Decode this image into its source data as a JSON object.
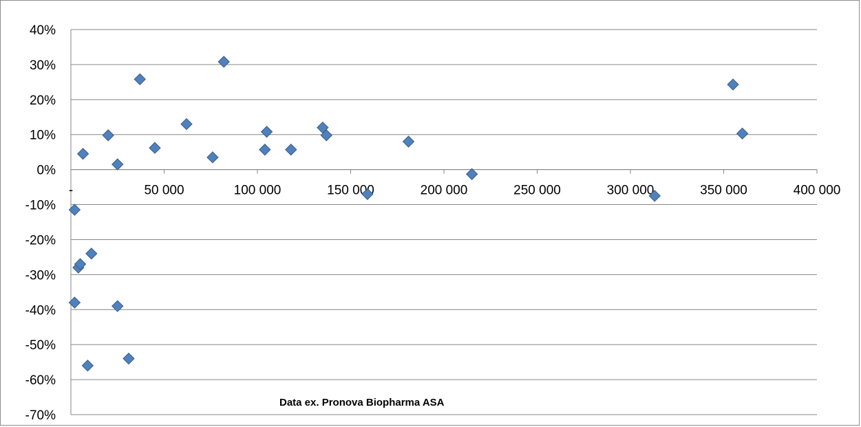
{
  "chart_data": {
    "type": "scatter",
    "title": "",
    "xlabel": "",
    "ylabel": "",
    "xlim": [
      0,
      400000
    ],
    "ylim": [
      -0.7,
      0.4
    ],
    "x_ticks": [
      {
        "value": 0,
        "label": "-"
      },
      {
        "value": 50000,
        "label": "50 000"
      },
      {
        "value": 100000,
        "label": "100 000"
      },
      {
        "value": 150000,
        "label": "150 000"
      },
      {
        "value": 200000,
        "label": "200 000"
      },
      {
        "value": 250000,
        "label": "250 000"
      },
      {
        "value": 300000,
        "label": "300 000"
      },
      {
        "value": 350000,
        "label": "350 000"
      },
      {
        "value": 400000,
        "label": "400 000"
      }
    ],
    "y_ticks": [
      {
        "value": 0.4,
        "label": "40%"
      },
      {
        "value": 0.3,
        "label": "30%"
      },
      {
        "value": 0.2,
        "label": "20%"
      },
      {
        "value": 0.1,
        "label": "10%"
      },
      {
        "value": 0.0,
        "label": "0%"
      },
      {
        "value": -0.1,
        "label": "-10%"
      },
      {
        "value": -0.2,
        "label": "-20%"
      },
      {
        "value": -0.3,
        "label": "-30%"
      },
      {
        "value": -0.4,
        "label": "-40%"
      },
      {
        "value": -0.5,
        "label": "-50%"
      },
      {
        "value": -0.6,
        "label": "-60%"
      },
      {
        "value": -0.7,
        "label": "-70%"
      }
    ],
    "grid": true,
    "legend": "none",
    "annotation": "Data ex. Pronova Biopharma ASA",
    "marker_color": "#4f81bd",
    "marker_edge_color": "#385d8a",
    "gridline_color": "#868686",
    "series": [
      {
        "points": [
          {
            "x": 2000,
            "y": -0.115
          },
          {
            "x": 2000,
            "y": -0.38
          },
          {
            "x": 4000,
            "y": -0.28
          },
          {
            "x": 5000,
            "y": -0.27
          },
          {
            "x": 6500,
            "y": 0.045
          },
          {
            "x": 9000,
            "y": -0.56
          },
          {
            "x": 11000,
            "y": -0.24
          },
          {
            "x": 20000,
            "y": 0.098
          },
          {
            "x": 25000,
            "y": 0.015
          },
          {
            "x": 25000,
            "y": -0.39
          },
          {
            "x": 31000,
            "y": -0.54
          },
          {
            "x": 37000,
            "y": 0.258
          },
          {
            "x": 45000,
            "y": 0.062
          },
          {
            "x": 62000,
            "y": 0.13
          },
          {
            "x": 76000,
            "y": 0.035
          },
          {
            "x": 82000,
            "y": 0.308
          },
          {
            "x": 104000,
            "y": 0.057
          },
          {
            "x": 105000,
            "y": 0.108
          },
          {
            "x": 118000,
            "y": 0.057
          },
          {
            "x": 135000,
            "y": 0.12
          },
          {
            "x": 137000,
            "y": 0.098
          },
          {
            "x": 159000,
            "y": -0.07
          },
          {
            "x": 181000,
            "y": 0.08
          },
          {
            "x": 215000,
            "y": -0.013
          },
          {
            "x": 313000,
            "y": -0.075
          },
          {
            "x": 355000,
            "y": 0.243
          },
          {
            "x": 360000,
            "y": 0.103
          }
        ]
      }
    ]
  }
}
